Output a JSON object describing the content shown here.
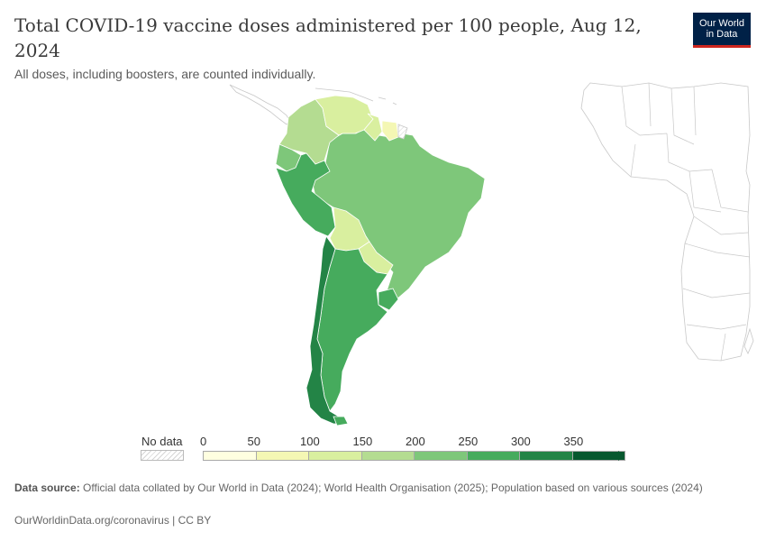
{
  "title": "Total COVID-19 vaccine doses administered per 100 people, Aug 12, 2024",
  "subtitle": "All doses, including boosters, are counted individually.",
  "logo": {
    "line1": "Our World",
    "line2": "in Data",
    "bg": "#002147",
    "accent": "#ce261e"
  },
  "legend": {
    "nodata_label": "No data",
    "ticks": [
      "0",
      "50",
      "100",
      "150",
      "200",
      "250",
      "300",
      "350"
    ],
    "bins": [
      {
        "from": 0,
        "to": 50,
        "color": "#ffffe0"
      },
      {
        "from": 50,
        "to": 100,
        "color": "#f4f7b4"
      },
      {
        "from": 100,
        "to": 150,
        "color": "#d9ef9f"
      },
      {
        "from": 150,
        "to": 200,
        "color": "#b4dc91"
      },
      {
        "from": 200,
        "to": 250,
        "color": "#7ec77a"
      },
      {
        "from": 250,
        "to": 300,
        "color": "#46ab5d"
      },
      {
        "from": 300,
        "to": 350,
        "color": "#238446"
      },
      {
        "from": 350,
        "to": null,
        "color": "#07582f"
      }
    ]
  },
  "countries": [
    {
      "name": "Colombia",
      "bin": 3
    },
    {
      "name": "Venezuela",
      "bin": 2
    },
    {
      "name": "Guyana",
      "bin": 2
    },
    {
      "name": "Suriname",
      "bin": 1
    },
    {
      "name": "Ecuador",
      "bin": 4
    },
    {
      "name": "Peru",
      "bin": 5
    },
    {
      "name": "Brazil",
      "bin": 4
    },
    {
      "name": "Bolivia",
      "bin": 2
    },
    {
      "name": "Paraguay",
      "bin": 2
    },
    {
      "name": "Uruguay",
      "bin": 5
    },
    {
      "name": "Argentina",
      "bin": 5
    },
    {
      "name": "Chile",
      "bin": 6
    }
  ],
  "footer": {
    "source_label": "Data source:",
    "source_text": "Official data collated by Our World in Data (2024); World Health Organisation (2025); Population based on various sources (2024)",
    "link_text": "OurWorldinData.org/coronavirus | CC BY"
  }
}
